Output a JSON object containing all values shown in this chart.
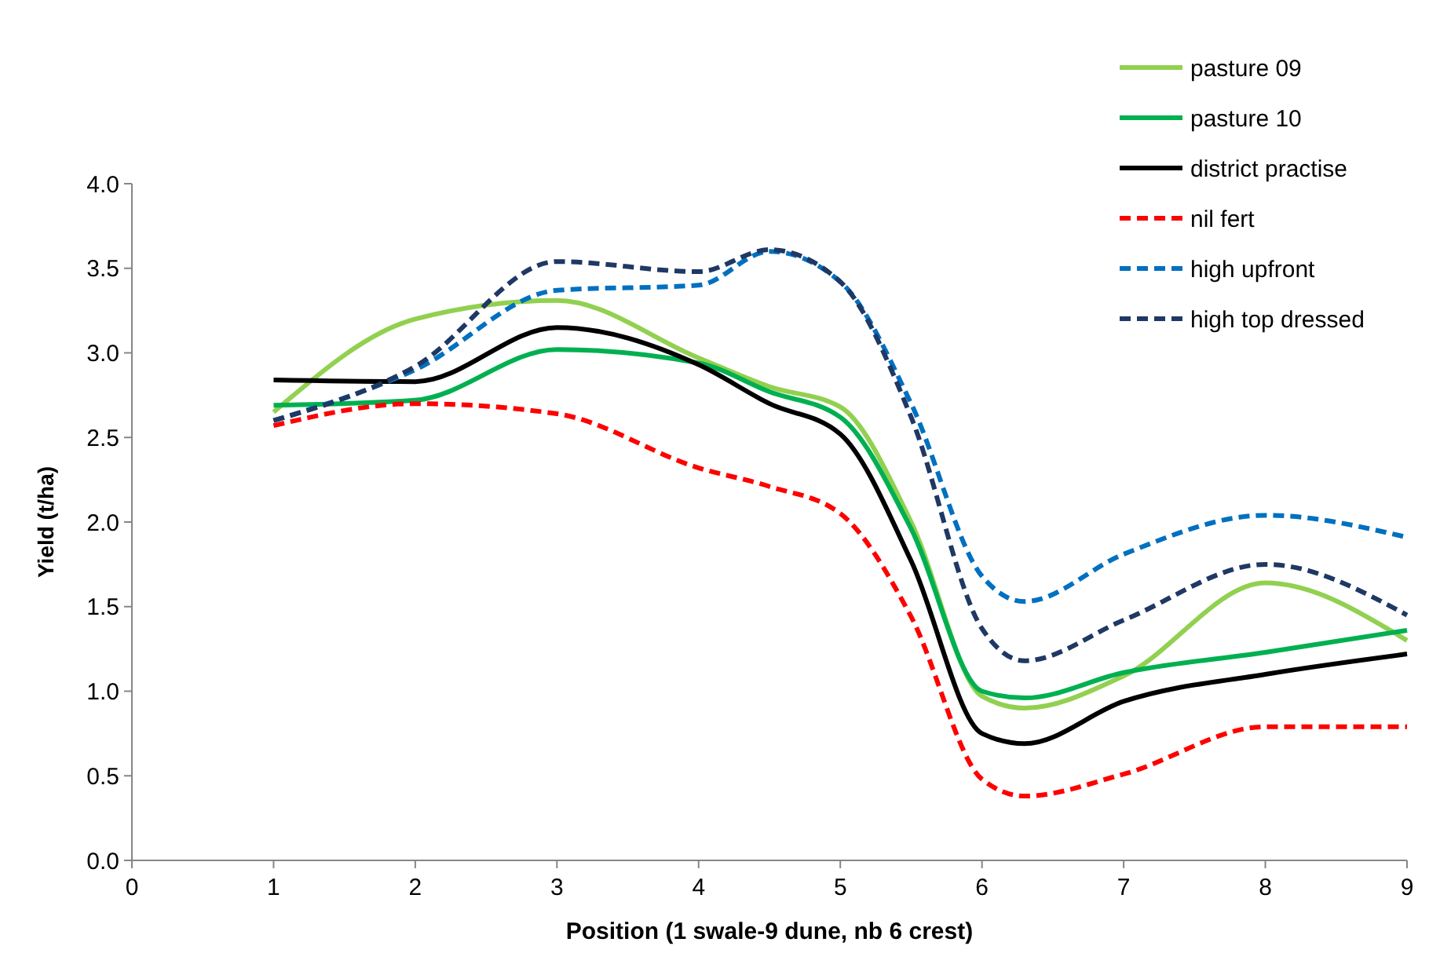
{
  "chart_data": {
    "type": "line",
    "xlabel": "Position (1 swale-9 dune, nb 6 crest)",
    "ylabel": "Yield (t/ha)",
    "x": [
      1,
      2,
      3,
      4,
      4.5,
      5,
      5.5,
      6,
      6.3,
      7,
      8,
      9
    ],
    "series": [
      {
        "name": "pasture 09",
        "color": "#92d050",
        "line_style": "solid",
        "values": [
          2.65,
          3.2,
          3.31,
          2.97,
          2.8,
          2.68,
          2.0,
          0.97,
          0.9,
          1.09,
          1.64,
          1.3
        ]
      },
      {
        "name": "pasture 10",
        "color": "#00b050",
        "line_style": "solid",
        "values": [
          2.69,
          2.72,
          3.02,
          2.94,
          2.77,
          2.62,
          1.96,
          1.0,
          0.96,
          1.11,
          1.23,
          1.36
        ]
      },
      {
        "name": "district practise",
        "color": "#000000",
        "line_style": "solid",
        "values": [
          2.84,
          2.83,
          3.15,
          2.93,
          2.7,
          2.52,
          1.77,
          0.75,
          0.69,
          0.94,
          1.1,
          1.22
        ]
      },
      {
        "name": "nil fert",
        "color": "#ff0000",
        "line_style": "dashed",
        "values": [
          2.57,
          2.7,
          2.64,
          2.32,
          2.21,
          2.05,
          1.44,
          0.48,
          0.38,
          0.51,
          0.79,
          0.79
        ]
      },
      {
        "name": "high upfront",
        "color": "#0070c0",
        "line_style": "dashed",
        "values": [
          2.6,
          2.9,
          3.37,
          3.4,
          3.6,
          3.42,
          2.7,
          1.68,
          1.53,
          1.81,
          2.04,
          1.91
        ]
      },
      {
        "name": "high top dressed",
        "color": "#1f3864",
        "line_style": "dashed",
        "values": [
          2.6,
          2.92,
          3.54,
          3.48,
          3.61,
          3.42,
          2.62,
          1.37,
          1.18,
          1.42,
          1.75,
          1.45
        ]
      }
    ],
    "xlim": [
      0,
      9
    ],
    "xticks": [
      0,
      1,
      2,
      3,
      4,
      5,
      6,
      7,
      8,
      9
    ],
    "ylim": [
      0,
      4
    ],
    "yticks": [
      {
        "value": 0,
        "label": "0.0"
      },
      {
        "value": 0.5,
        "label": "0.5"
      },
      {
        "value": 1,
        "label": "1.0"
      },
      {
        "value": 1.5,
        "label": "1.5"
      },
      {
        "value": 2,
        "label": "2.0"
      },
      {
        "value": 2.5,
        "label": "2.5"
      },
      {
        "value": 3,
        "label": "3.0"
      },
      {
        "value": 3.5,
        "label": "3.5"
      },
      {
        "value": 4,
        "label": "4.0"
      }
    ],
    "grid": false,
    "legend": "top right",
    "marker": "none"
  }
}
